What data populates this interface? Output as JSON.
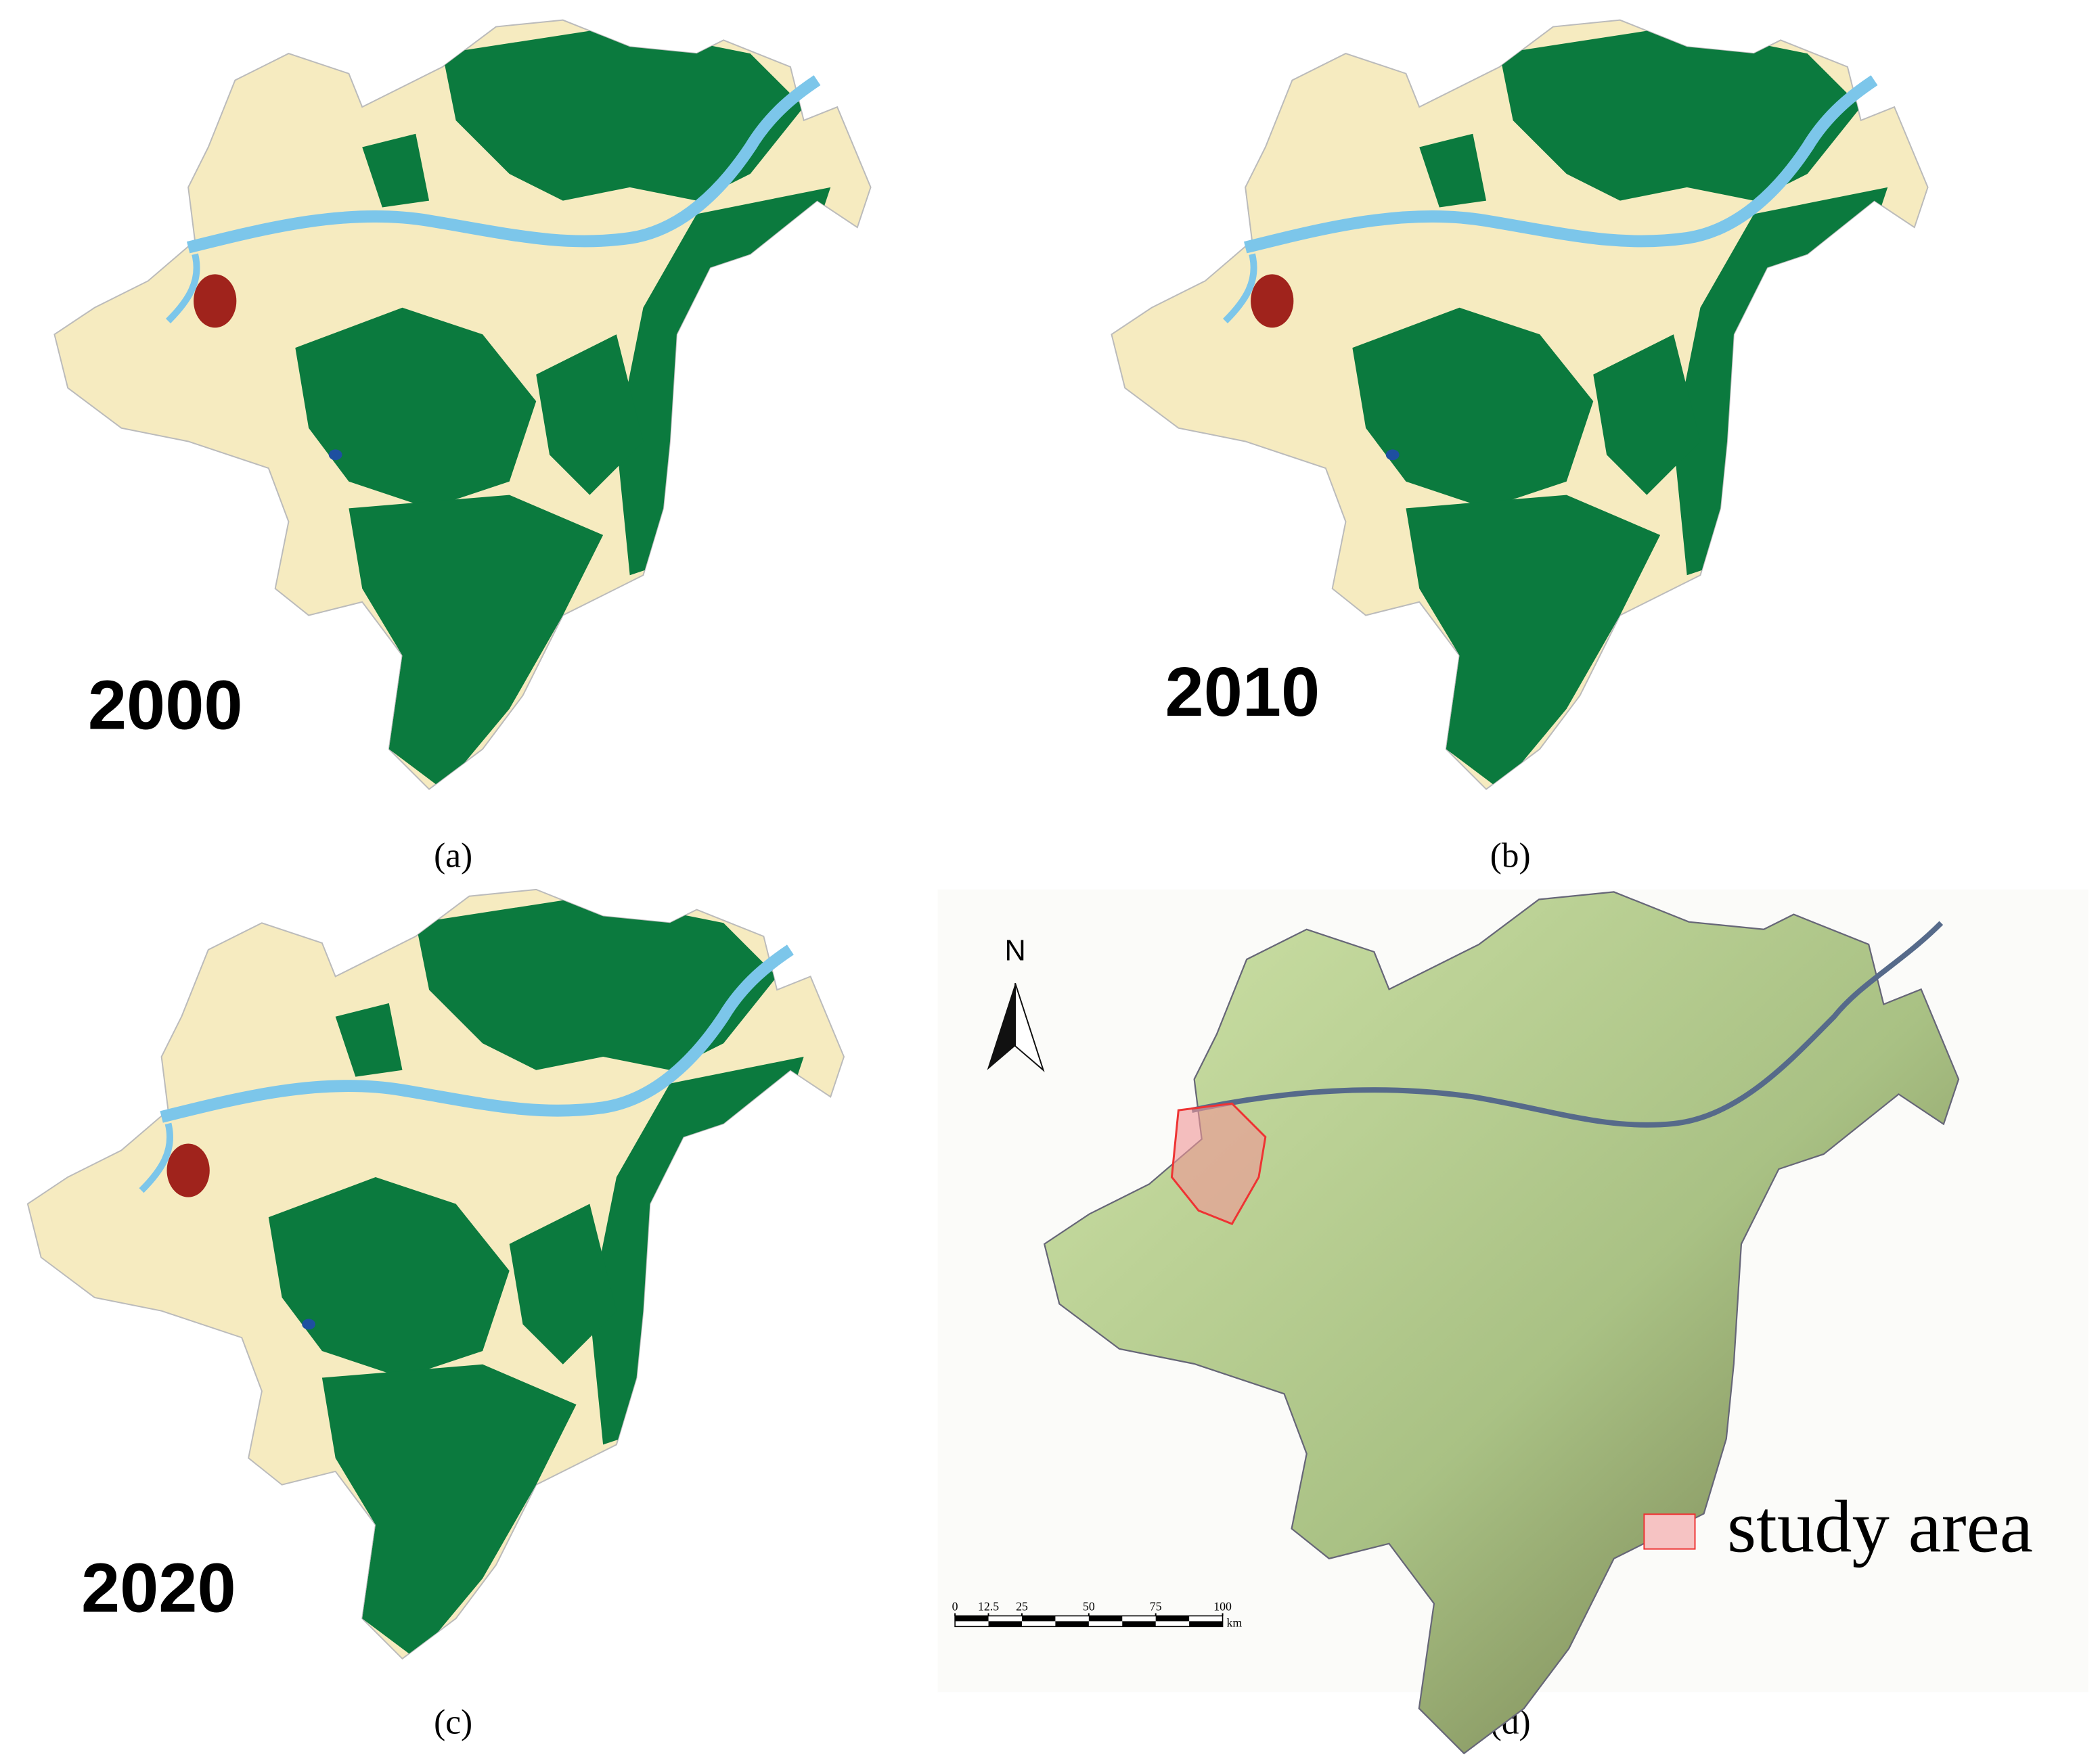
{
  "panels": [
    {
      "year": "2000",
      "caption": "(a)"
    },
    {
      "year": "2010",
      "caption": "(b)"
    },
    {
      "year": "2020",
      "caption": "(c)"
    }
  ],
  "panel_d": {
    "caption": "(d)",
    "north": "N",
    "legend": "study area",
    "scale_bar": {
      "ticks": [
        0,
        12.5,
        25,
        50,
        75,
        100
      ],
      "unit": "km"
    }
  }
}
